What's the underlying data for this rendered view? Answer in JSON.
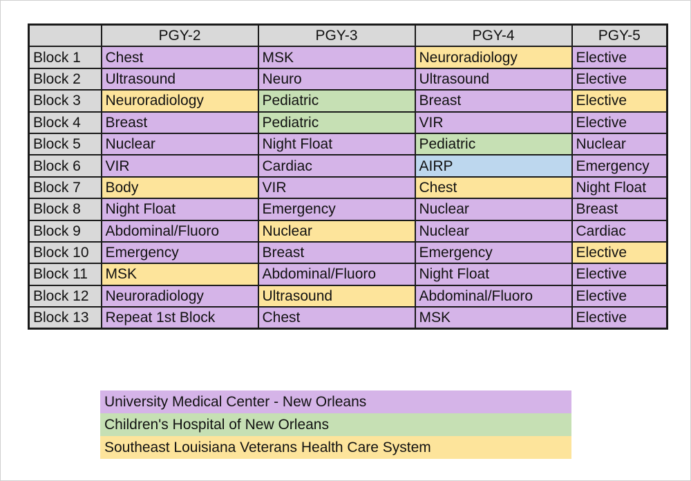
{
  "colors": {
    "umc": "#d5b4e8",
    "chno": "#c6e0b4",
    "va": "#fde49b",
    "airp": "#bdd7ee",
    "header": "#d9d9d9"
  },
  "schedule": {
    "corner": "",
    "columns": [
      "PGY-2",
      "PGY-3",
      "PGY-4",
      "PGY-5"
    ],
    "rows": [
      {
        "block": "Block 1",
        "cells": [
          {
            "text": "Chest",
            "site": "umc"
          },
          {
            "text": "MSK",
            "site": "umc"
          },
          {
            "text": "Neuroradiology",
            "site": "va"
          },
          {
            "text": "Elective",
            "site": "umc"
          }
        ]
      },
      {
        "block": "Block 2",
        "cells": [
          {
            "text": "Ultrasound",
            "site": "umc"
          },
          {
            "text": "Neuro",
            "site": "umc"
          },
          {
            "text": "Ultrasound",
            "site": "umc"
          },
          {
            "text": "Elective",
            "site": "umc"
          }
        ]
      },
      {
        "block": "Block 3",
        "cells": [
          {
            "text": "Neuroradiology",
            "site": "va"
          },
          {
            "text": "Pediatric",
            "site": "chno"
          },
          {
            "text": "Breast",
            "site": "umc"
          },
          {
            "text": "Elective",
            "site": "va"
          }
        ]
      },
      {
        "block": "Block 4",
        "cells": [
          {
            "text": "Breast",
            "site": "umc"
          },
          {
            "text": "Pediatric",
            "site": "chno"
          },
          {
            "text": "VIR",
            "site": "umc"
          },
          {
            "text": "Elective",
            "site": "umc"
          }
        ]
      },
      {
        "block": "Block 5",
        "cells": [
          {
            "text": "Nuclear",
            "site": "umc"
          },
          {
            "text": "Night Float",
            "site": "umc"
          },
          {
            "text": "Pediatric",
            "site": "chno"
          },
          {
            "text": "Nuclear",
            "site": "umc"
          }
        ]
      },
      {
        "block": "Block 6",
        "cells": [
          {
            "text": "VIR",
            "site": "umc"
          },
          {
            "text": "Cardiac",
            "site": "umc"
          },
          {
            "text": "AIRP",
            "site": "airp"
          },
          {
            "text": "Emergency",
            "site": "umc"
          }
        ]
      },
      {
        "block": "Block 7",
        "cells": [
          {
            "text": "Body",
            "site": "va"
          },
          {
            "text": "VIR",
            "site": "umc"
          },
          {
            "text": "Chest",
            "site": "va"
          },
          {
            "text": "Night Float",
            "site": "umc"
          }
        ]
      },
      {
        "block": "Block 8",
        "cells": [
          {
            "text": "Night Float",
            "site": "umc"
          },
          {
            "text": "Emergency",
            "site": "umc"
          },
          {
            "text": "Nuclear",
            "site": "umc"
          },
          {
            "text": "Breast",
            "site": "umc"
          }
        ]
      },
      {
        "block": "Block 9",
        "cells": [
          {
            "text": "Abdominal/Fluoro",
            "site": "umc"
          },
          {
            "text": "Nuclear",
            "site": "va"
          },
          {
            "text": "Nuclear",
            "site": "umc"
          },
          {
            "text": "Cardiac",
            "site": "umc"
          }
        ]
      },
      {
        "block": "Block 10",
        "cells": [
          {
            "text": "Emergency",
            "site": "umc"
          },
          {
            "text": "Breast",
            "site": "umc"
          },
          {
            "text": "Emergency",
            "site": "umc"
          },
          {
            "text": "Elective",
            "site": "va"
          }
        ]
      },
      {
        "block": "Block 11",
        "cells": [
          {
            "text": "MSK",
            "site": "va"
          },
          {
            "text": "Abdominal/Fluoro",
            "site": "umc"
          },
          {
            "text": "Night Float",
            "site": "umc"
          },
          {
            "text": "Elective",
            "site": "umc"
          }
        ]
      },
      {
        "block": "Block 12",
        "cells": [
          {
            "text": "Neuroradiology",
            "site": "umc"
          },
          {
            "text": "Ultrasound",
            "site": "va"
          },
          {
            "text": "Abdominal/Fluoro",
            "site": "umc"
          },
          {
            "text": "Elective",
            "site": "umc"
          }
        ]
      },
      {
        "block": "Block 13",
        "cells": [
          {
            "text": "Repeat 1st Block",
            "site": "umc"
          },
          {
            "text": "Chest",
            "site": "umc"
          },
          {
            "text": "MSK",
            "site": "umc"
          },
          {
            "text": "Elective",
            "site": "umc"
          }
        ]
      }
    ]
  },
  "legend": [
    {
      "label": "University Medical Center - New Orleans",
      "site": "umc"
    },
    {
      "label": "Children's Hospital of New Orleans",
      "site": "chno"
    },
    {
      "label": "Southeast Louisiana Veterans Health Care System",
      "site": "va"
    }
  ]
}
